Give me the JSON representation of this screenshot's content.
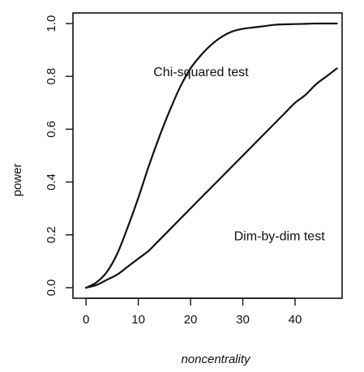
{
  "chart_data": {
    "type": "line",
    "xlabel": "noncentrality",
    "ylabel": "power",
    "xlim": [
      -2.5,
      49
    ],
    "ylim": [
      -0.04,
      1.04
    ],
    "x_ticks": [
      "0",
      "10",
      "20",
      "30",
      "40"
    ],
    "y_ticks": [
      "0.0",
      "0.2",
      "0.4",
      "0.6",
      "0.8",
      "1.0"
    ],
    "grid": false,
    "legend": "none",
    "series": [
      {
        "name": "Chi-squared test",
        "color": "#111111",
        "x": [
          0,
          2,
          4,
          6,
          8,
          10,
          12,
          14,
          16,
          18,
          20,
          22,
          24,
          26,
          28,
          30,
          32,
          34,
          36,
          38,
          40,
          42,
          44,
          46,
          48
        ],
        "y": [
          0.0,
          0.02,
          0.06,
          0.13,
          0.23,
          0.34,
          0.46,
          0.57,
          0.67,
          0.76,
          0.83,
          0.88,
          0.92,
          0.95,
          0.97,
          0.98,
          0.985,
          0.99,
          0.995,
          0.997,
          0.998,
          0.999,
          1.0,
          1.0,
          1.0
        ]
      },
      {
        "name": "Dim-by-dim test",
        "color": "#111111",
        "x": [
          0,
          2,
          4,
          6,
          8,
          10,
          12,
          14,
          16,
          18,
          20,
          22,
          24,
          26,
          28,
          30,
          32,
          34,
          36,
          38,
          40,
          42,
          44,
          46,
          48
        ],
        "y": [
          0.0,
          0.01,
          0.03,
          0.05,
          0.08,
          0.11,
          0.14,
          0.18,
          0.22,
          0.26,
          0.3,
          0.34,
          0.38,
          0.42,
          0.46,
          0.5,
          0.54,
          0.58,
          0.62,
          0.66,
          0.7,
          0.73,
          0.77,
          0.8,
          0.83
        ]
      }
    ],
    "annotations": [
      {
        "text": "Chi-squared test",
        "x": 22,
        "y": 0.8
      },
      {
        "text": "Dim-by-dim test",
        "x": 37,
        "y": 0.18
      }
    ]
  }
}
